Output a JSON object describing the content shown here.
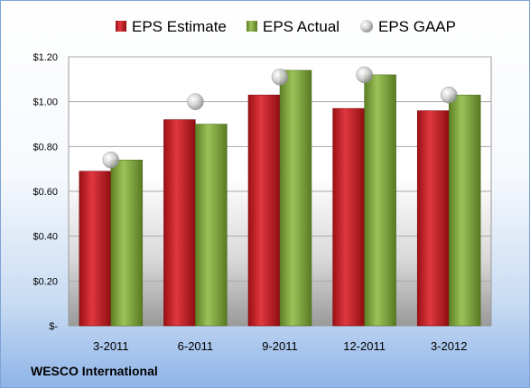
{
  "company": "WESCO International",
  "chart_data": {
    "type": "bar",
    "categories": [
      "3-2011",
      "6-2011",
      "9-2011",
      "12-2011",
      "3-2012"
    ],
    "series": [
      {
        "name": "EPS Estimate",
        "kind": "bar",
        "color": "#c8232a",
        "values": [
          0.69,
          0.92,
          1.03,
          0.97,
          0.96
        ]
      },
      {
        "name": "EPS Actual",
        "kind": "bar",
        "color": "#7ea63c",
        "values": [
          0.74,
          0.9,
          1.14,
          1.12,
          1.03
        ]
      },
      {
        "name": "EPS GAAP",
        "kind": "marker",
        "color": "#c0c0c0",
        "values": [
          0.74,
          1.0,
          1.11,
          1.12,
          1.03
        ]
      }
    ],
    "yticks": [
      "$-",
      "$0.20",
      "$0.40",
      "$0.60",
      "$0.80",
      "$1.00",
      "$1.20"
    ],
    "ylim": [
      0,
      1.2
    ],
    "grid": true,
    "legend_position": "top"
  }
}
